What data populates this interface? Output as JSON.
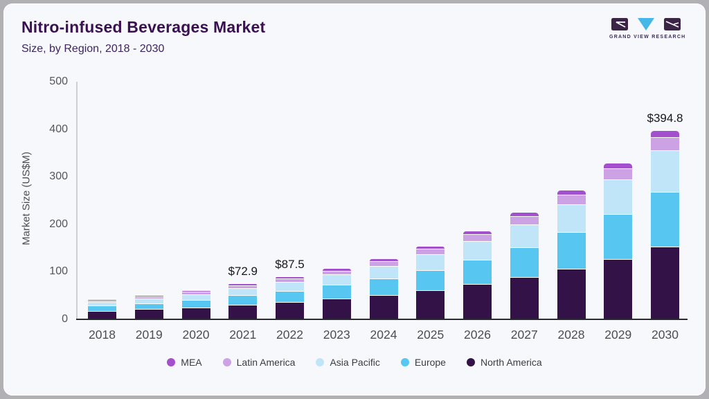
{
  "header": {
    "title": "Nitro-infused Beverages Market",
    "subtitle": "Size, by Region, 2018 - 2030"
  },
  "logo": {
    "text": "GRAND VIEW RESEARCH"
  },
  "colors": {
    "card_background": "#f6f8fb",
    "outer_background": "#b1b1b4",
    "title_text": "#3a1053",
    "axis_text": "#53575c",
    "axis_line": "#2a2a32",
    "y_axis_line": "#ccd0d6",
    "value_label_text": "#17171b",
    "legend_text": "#393d43",
    "logo_purple": "#3b2546",
    "logo_blue": "#45b7e8"
  },
  "chart_data": {
    "type": "bar",
    "stacked": true,
    "title": "Nitro-infused Beverages Market Size, by Region, 2018 - 2030",
    "xlabel": "",
    "ylabel": "Market Size (US$M)",
    "ylim": [
      0,
      500
    ],
    "yticks": [
      "0",
      "100",
      "200",
      "300",
      "400",
      "500"
    ],
    "grid": false,
    "legend_position": "bottom",
    "categories": [
      "2018",
      "2019",
      "2020",
      "2021",
      "2022",
      "2023",
      "2024",
      "2025",
      "2026",
      "2027",
      "2028",
      "2029",
      "2030"
    ],
    "series": [
      {
        "name": "North America",
        "color": "#331347",
        "values": [
          16.5,
          19.9,
          23.9,
          29.5,
          35.2,
          42.0,
          50.0,
          60.2,
          72.4,
          87.1,
          104.8,
          126.0,
          151.6
        ]
      },
      {
        "name": "Europe",
        "color": "#57c6f1",
        "values": [
          10.5,
          12.8,
          15.7,
          19.6,
          23.8,
          28.8,
          34.8,
          42.5,
          51.9,
          63.4,
          77.4,
          94.5,
          115.0
        ]
      },
      {
        "name": "Asia Pacific",
        "color": "#c1e5f8",
        "values": [
          8.0,
          9.8,
          11.9,
          15.0,
          18.2,
          22.0,
          26.5,
          32.4,
          39.6,
          48.3,
          59.0,
          72.0,
          87.5
        ]
      },
      {
        "name": "Latin America",
        "color": "#cca2e4",
        "values": [
          3.5,
          4.2,
          4.9,
          6.0,
          7.1,
          8.4,
          9.8,
          11.7,
          13.9,
          16.5,
          19.6,
          23.3,
          27.6
        ]
      },
      {
        "name": "MEA",
        "color": "#a44fce",
        "values": [
          1.5,
          1.8,
          2.2,
          2.8,
          3.2,
          3.9,
          4.4,
          5.3,
          6.4,
          7.6,
          9.1,
          10.9,
          13.1
        ]
      }
    ],
    "totals_shown": [
      "",
      "",
      "",
      "$72.9",
      "$87.5",
      "",
      "",
      "",
      "",
      "",
      "",
      "",
      "$394.8"
    ],
    "legend_order": [
      "MEA",
      "Latin America",
      "Asia Pacific",
      "Europe",
      "North America"
    ]
  }
}
